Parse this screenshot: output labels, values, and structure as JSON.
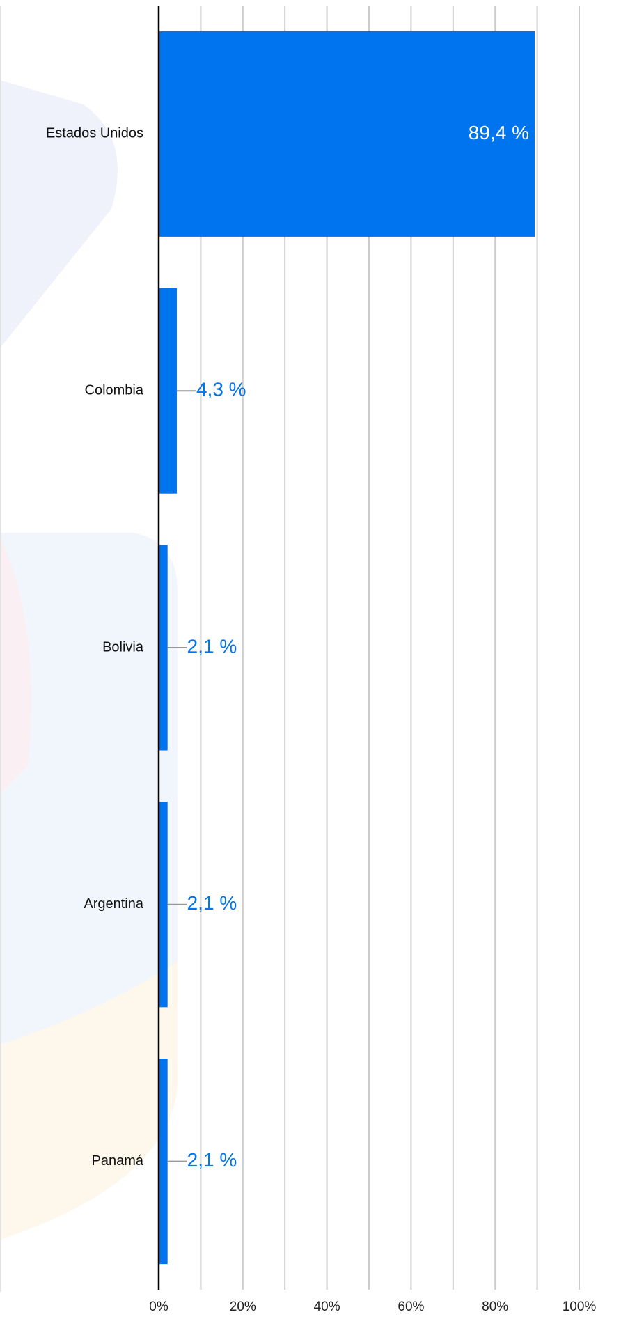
{
  "chart_data": {
    "type": "bar",
    "orientation": "horizontal",
    "categories": [
      "Estados Unidos",
      "Colombia",
      "Bolivia",
      "Argentina",
      "Panamá"
    ],
    "values": [
      89.4,
      4.3,
      2.1,
      2.1,
      2.1
    ],
    "value_labels": [
      "89,4 %",
      "4,3 %",
      "2,1 %",
      "2,1 %",
      "2,1 %"
    ],
    "color": "#0073ee",
    "xlim": [
      0,
      100
    ],
    "xticks": [
      {
        "value": 0,
        "label": "0%"
      },
      {
        "value": 20,
        "label": "20%"
      },
      {
        "value": 40,
        "label": "40%"
      },
      {
        "value": 60,
        "label": "60%"
      },
      {
        "value": 80,
        "label": "80%"
      },
      {
        "value": 100,
        "label": "100%"
      }
    ],
    "minor_xticks": [
      10,
      30,
      50,
      70,
      90
    ],
    "grid": true
  }
}
